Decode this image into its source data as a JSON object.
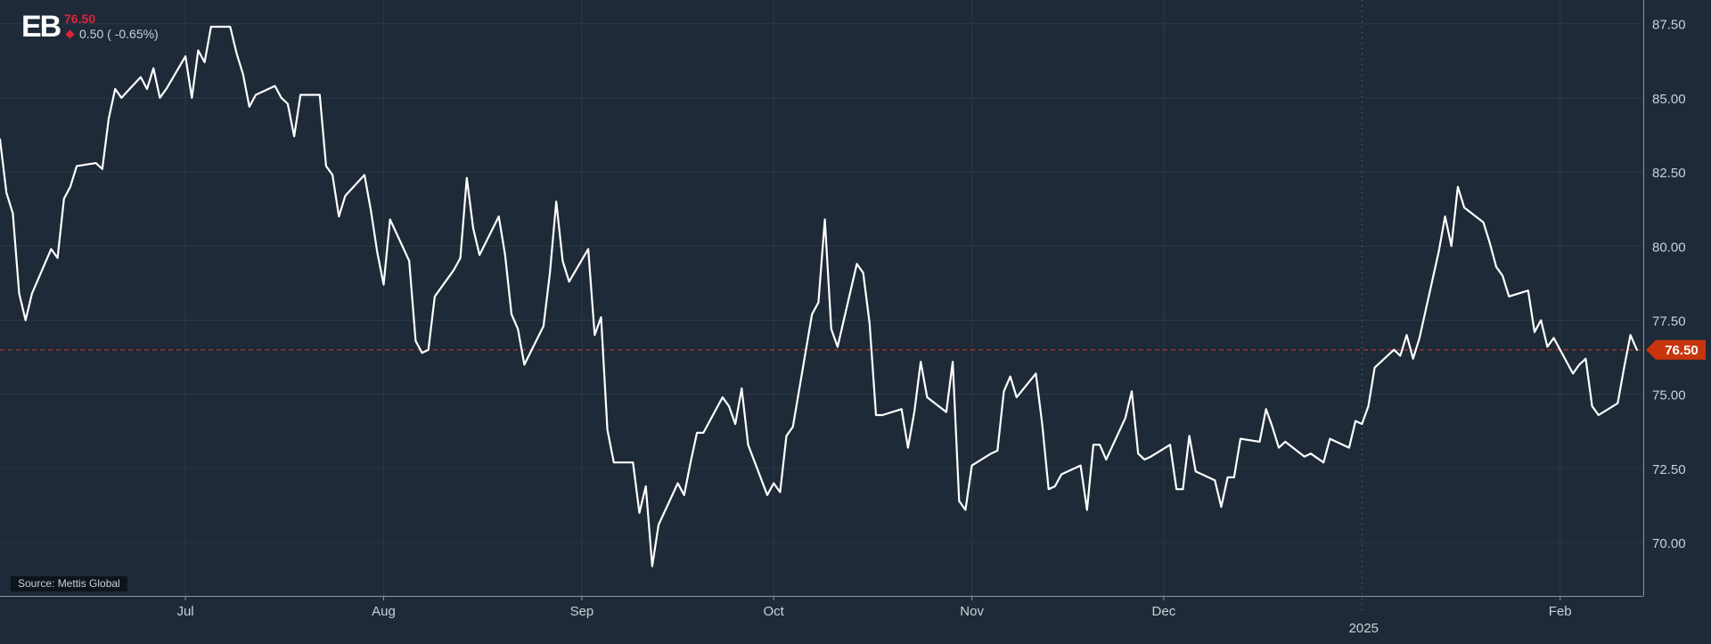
{
  "header": {
    "logo": "EB",
    "price": "76.50",
    "change_text": "0.50 ( -0.65%)"
  },
  "source_label": "Source: Mettis Global",
  "colors": {
    "background": "#1e2a37",
    "grid": "#2b3947",
    "line": "#ffffff",
    "axis_text": "#c9d1da",
    "negative": "#e0243a",
    "last_price_marker": "#c8350c",
    "reference_line": "#b23a2a"
  },
  "chart_data": {
    "type": "line",
    "title": "",
    "xlabel": "",
    "ylabel": "",
    "ylim": [
      68.2,
      88.3
    ],
    "y_ticks": [
      "70.00",
      "72.50",
      "75.00",
      "77.50",
      "80.00",
      "82.50",
      "85.00",
      "87.50"
    ],
    "x_ticks": [
      {
        "label": "Jul",
        "date": "2024-07-01"
      },
      {
        "label": "Aug",
        "date": "2024-08-01"
      },
      {
        "label": "Sep",
        "date": "2024-09-01"
      },
      {
        "label": "Oct",
        "date": "2024-10-01"
      },
      {
        "label": "Nov",
        "date": "2024-11-01"
      },
      {
        "label": "Dec",
        "date": "2024-12-01"
      },
      {
        "label": "Feb",
        "date": "2025-02-01"
      }
    ],
    "year_marker": {
      "label": "2025",
      "date": "2025-01-01"
    },
    "xlim": [
      "2024-06-02",
      "2025-02-14"
    ],
    "last_value": 76.5,
    "last_value_label": "76.50",
    "grid": true,
    "series": [
      {
        "data": [
          [
            "2024-06-02",
            83.6
          ],
          [
            "2024-06-03",
            81.8
          ],
          [
            "2024-06-04",
            81.1
          ],
          [
            "2024-06-05",
            78.4
          ],
          [
            "2024-06-06",
            77.5
          ],
          [
            "2024-06-07",
            78.4
          ],
          [
            "2024-06-10",
            79.9
          ],
          [
            "2024-06-11",
            79.6
          ],
          [
            "2024-06-12",
            81.6
          ],
          [
            "2024-06-13",
            82.0
          ],
          [
            "2024-06-14",
            82.7
          ],
          [
            "2024-06-17",
            82.8
          ],
          [
            "2024-06-18",
            82.6
          ],
          [
            "2024-06-19",
            84.3
          ],
          [
            "2024-06-20",
            85.3
          ],
          [
            "2024-06-21",
            85.0
          ],
          [
            "2024-06-24",
            85.7
          ],
          [
            "2024-06-25",
            85.3
          ],
          [
            "2024-06-26",
            86.0
          ],
          [
            "2024-06-27",
            85.0
          ],
          [
            "2024-06-28",
            85.3
          ],
          [
            "2024-07-01",
            86.4
          ],
          [
            "2024-07-02",
            85.0
          ],
          [
            "2024-07-03",
            86.6
          ],
          [
            "2024-07-04",
            86.2
          ],
          [
            "2024-07-05",
            87.4
          ],
          [
            "2024-07-08",
            87.4
          ],
          [
            "2024-07-09",
            86.5
          ],
          [
            "2024-07-10",
            85.8
          ],
          [
            "2024-07-11",
            84.7
          ],
          [
            "2024-07-12",
            85.1
          ],
          [
            "2024-07-15",
            85.4
          ],
          [
            "2024-07-16",
            85.0
          ],
          [
            "2024-07-17",
            84.8
          ],
          [
            "2024-07-18",
            83.7
          ],
          [
            "2024-07-19",
            85.1
          ],
          [
            "2024-07-22",
            85.1
          ],
          [
            "2024-07-23",
            82.7
          ],
          [
            "2024-07-24",
            82.4
          ],
          [
            "2024-07-25",
            81.0
          ],
          [
            "2024-07-26",
            81.7
          ],
          [
            "2024-07-29",
            82.4
          ],
          [
            "2024-07-30",
            81.2
          ],
          [
            "2024-07-31",
            79.8
          ],
          [
            "2024-08-01",
            78.7
          ],
          [
            "2024-08-02",
            80.9
          ],
          [
            "2024-08-05",
            79.5
          ],
          [
            "2024-08-06",
            76.8
          ],
          [
            "2024-08-07",
            76.4
          ],
          [
            "2024-08-08",
            76.5
          ],
          [
            "2024-08-09",
            78.3
          ],
          [
            "2024-08-12",
            79.2
          ],
          [
            "2024-08-13",
            79.6
          ],
          [
            "2024-08-14",
            82.3
          ],
          [
            "2024-08-15",
            80.6
          ],
          [
            "2024-08-16",
            79.7
          ],
          [
            "2024-08-19",
            81.0
          ],
          [
            "2024-08-20",
            79.7
          ],
          [
            "2024-08-21",
            77.7
          ],
          [
            "2024-08-22",
            77.2
          ],
          [
            "2024-08-23",
            76.0
          ],
          [
            "2024-08-26",
            77.3
          ],
          [
            "2024-08-27",
            79.1
          ],
          [
            "2024-08-28",
            81.5
          ],
          [
            "2024-08-29",
            79.5
          ],
          [
            "2024-08-30",
            78.8
          ],
          [
            "2024-09-02",
            79.9
          ],
          [
            "2024-09-03",
            77.0
          ],
          [
            "2024-09-04",
            77.6
          ],
          [
            "2024-09-05",
            73.8
          ],
          [
            "2024-09-06",
            72.7
          ],
          [
            "2024-09-09",
            72.7
          ],
          [
            "2024-09-10",
            71.0
          ],
          [
            "2024-09-11",
            71.9
          ],
          [
            "2024-09-12",
            69.2
          ],
          [
            "2024-09-13",
            70.6
          ],
          [
            "2024-09-16",
            72.0
          ],
          [
            "2024-09-17",
            71.6
          ],
          [
            "2024-09-18",
            72.7
          ],
          [
            "2024-09-19",
            73.7
          ],
          [
            "2024-09-20",
            73.7
          ],
          [
            "2024-09-23",
            74.9
          ],
          [
            "2024-09-24",
            74.6
          ],
          [
            "2024-09-25",
            74.0
          ],
          [
            "2024-09-26",
            75.2
          ],
          [
            "2024-09-27",
            73.3
          ],
          [
            "2024-09-30",
            71.6
          ],
          [
            "2024-10-01",
            72.0
          ],
          [
            "2024-10-02",
            71.7
          ],
          [
            "2024-10-03",
            73.6
          ],
          [
            "2024-10-04",
            73.9
          ],
          [
            "2024-10-07",
            77.7
          ],
          [
            "2024-10-08",
            78.1
          ],
          [
            "2024-10-09",
            80.9
          ],
          [
            "2024-10-10",
            77.2
          ],
          [
            "2024-10-11",
            76.6
          ],
          [
            "2024-10-14",
            79.4
          ],
          [
            "2024-10-15",
            79.1
          ],
          [
            "2024-10-16",
            77.4
          ],
          [
            "2024-10-17",
            74.3
          ],
          [
            "2024-10-18",
            74.3
          ],
          [
            "2024-10-21",
            74.5
          ],
          [
            "2024-10-22",
            73.2
          ],
          [
            "2024-10-23",
            74.4
          ],
          [
            "2024-10-24",
            76.1
          ],
          [
            "2024-10-25",
            74.9
          ],
          [
            "2024-10-28",
            74.4
          ],
          [
            "2024-10-29",
            76.1
          ],
          [
            "2024-10-30",
            71.4
          ],
          [
            "2024-10-31",
            71.1
          ],
          [
            "2024-11-01",
            72.6
          ],
          [
            "2024-11-04",
            73.0
          ],
          [
            "2024-11-05",
            73.1
          ],
          [
            "2024-11-06",
            75.1
          ],
          [
            "2024-11-07",
            75.6
          ],
          [
            "2024-11-08",
            74.9
          ],
          [
            "2024-11-11",
            75.7
          ],
          [
            "2024-11-12",
            74.0
          ],
          [
            "2024-11-13",
            71.8
          ],
          [
            "2024-11-14",
            71.9
          ],
          [
            "2024-11-15",
            72.3
          ],
          [
            "2024-11-18",
            72.6
          ],
          [
            "2024-11-19",
            71.1
          ],
          [
            "2024-11-20",
            73.3
          ],
          [
            "2024-11-21",
            73.3
          ],
          [
            "2024-11-22",
            72.8
          ],
          [
            "2024-11-25",
            74.2
          ],
          [
            "2024-11-26",
            75.1
          ],
          [
            "2024-11-27",
            73.0
          ],
          [
            "2024-11-28",
            72.8
          ],
          [
            "2024-11-29",
            72.9
          ],
          [
            "2024-12-02",
            73.3
          ],
          [
            "2024-12-03",
            71.8
          ],
          [
            "2024-12-04",
            71.8
          ],
          [
            "2024-12-05",
            73.6
          ],
          [
            "2024-12-06",
            72.4
          ],
          [
            "2024-12-09",
            72.1
          ],
          [
            "2024-12-10",
            71.2
          ],
          [
            "2024-12-11",
            72.2
          ],
          [
            "2024-12-12",
            72.2
          ],
          [
            "2024-12-13",
            73.5
          ],
          [
            "2024-12-16",
            73.4
          ],
          [
            "2024-12-17",
            74.5
          ],
          [
            "2024-12-18",
            73.9
          ],
          [
            "2024-12-19",
            73.2
          ],
          [
            "2024-12-20",
            73.4
          ],
          [
            "2024-12-23",
            72.9
          ],
          [
            "2024-12-24",
            73.0
          ],
          [
            "2024-12-26",
            72.7
          ],
          [
            "2024-12-27",
            73.5
          ],
          [
            "2024-12-30",
            73.2
          ],
          [
            "2024-12-31",
            74.1
          ],
          [
            "2025-01-01",
            74.0
          ],
          [
            "2025-01-02",
            74.6
          ],
          [
            "2025-01-03",
            75.9
          ],
          [
            "2025-01-06",
            76.5
          ],
          [
            "2025-01-07",
            76.3
          ],
          [
            "2025-01-08",
            77.0
          ],
          [
            "2025-01-09",
            76.2
          ],
          [
            "2025-01-10",
            76.9
          ],
          [
            "2025-01-13",
            79.8
          ],
          [
            "2025-01-14",
            81.0
          ],
          [
            "2025-01-15",
            80.0
          ],
          [
            "2025-01-16",
            82.0
          ],
          [
            "2025-01-17",
            81.3
          ],
          [
            "2025-01-20",
            80.8
          ],
          [
            "2025-01-21",
            80.1
          ],
          [
            "2025-01-22",
            79.3
          ],
          [
            "2025-01-23",
            79.0
          ],
          [
            "2025-01-24",
            78.3
          ],
          [
            "2025-01-27",
            78.5
          ],
          [
            "2025-01-28",
            77.1
          ],
          [
            "2025-01-29",
            77.5
          ],
          [
            "2025-01-30",
            76.6
          ],
          [
            "2025-01-31",
            76.9
          ],
          [
            "2025-02-03",
            75.7
          ],
          [
            "2025-02-04",
            76.0
          ],
          [
            "2025-02-05",
            76.2
          ],
          [
            "2025-02-06",
            74.6
          ],
          [
            "2025-02-07",
            74.3
          ],
          [
            "2025-02-10",
            74.7
          ],
          [
            "2025-02-11",
            75.9
          ],
          [
            "2025-02-12",
            77.0
          ],
          [
            "2025-02-13",
            76.5
          ]
        ]
      }
    ]
  }
}
